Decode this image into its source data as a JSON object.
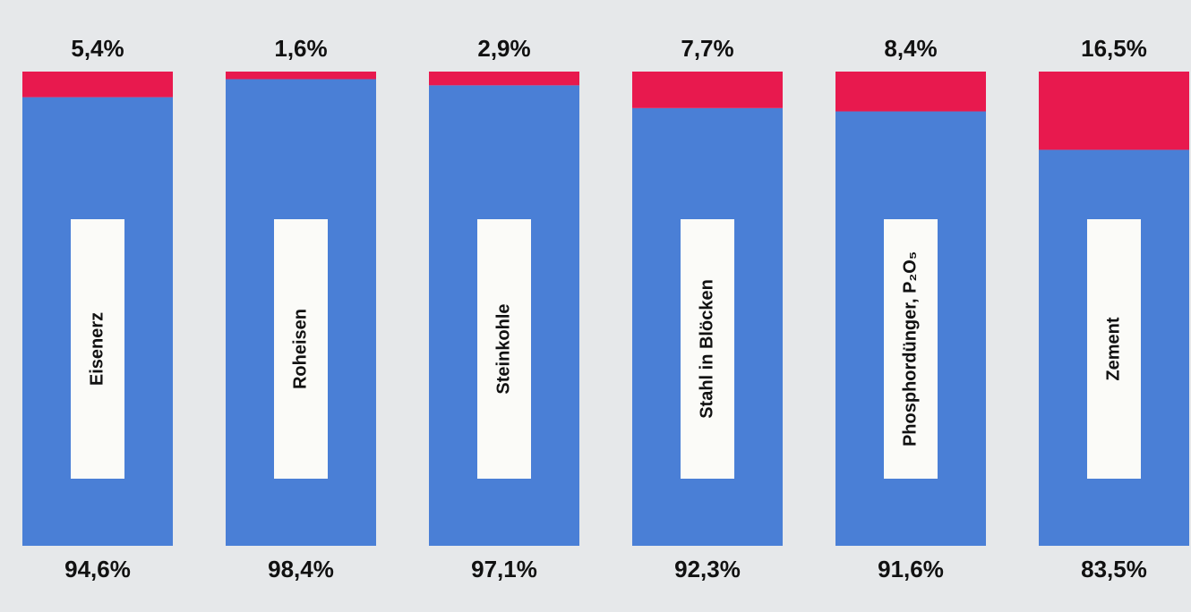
{
  "chart_data": {
    "type": "stacked_bar",
    "categories": [
      "Eisenerz",
      "Roheisen",
      "Steinkohle",
      "Stahl in Blöcken",
      "Phosphordünger, P₂O₅",
      "Zement"
    ],
    "series": [
      {
        "color": "#4a7fd6",
        "values": [
          94.6,
          98.4,
          97.1,
          92.3,
          91.6,
          83.5
        ],
        "value_labels": [
          "94,6%",
          "98,4%",
          "97,1%",
          "92,3%",
          "91,6%",
          "83,5%"
        ]
      },
      {
        "color": "#e8194e",
        "values": [
          5.4,
          1.6,
          2.9,
          7.7,
          8.4,
          16.5
        ],
        "value_labels": [
          "5,4%",
          "1,6%",
          "2,9%",
          "7,7%",
          "8,4%",
          "16,5%"
        ]
      }
    ]
  }
}
